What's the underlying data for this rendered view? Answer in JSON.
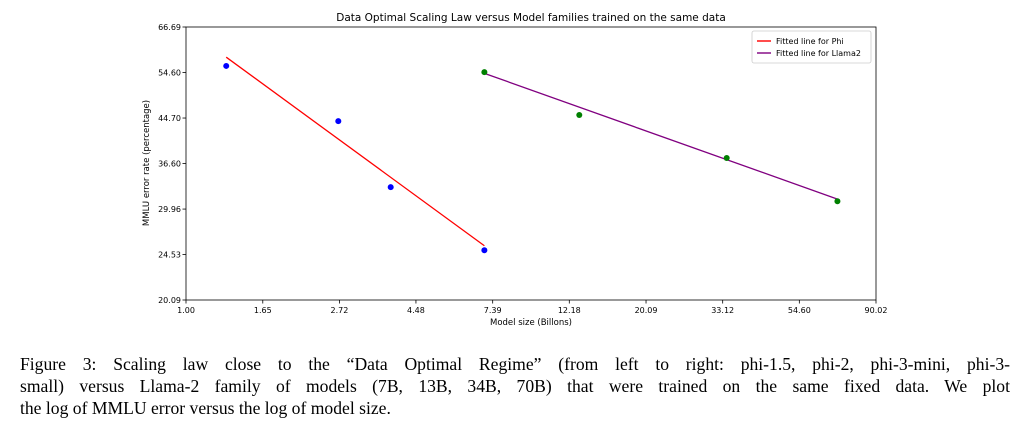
{
  "chart_data": {
    "type": "line+scatter",
    "title": "Data Optimal Scaling Law versus Model families trained on the same data",
    "xlabel": "Model size (Billons)",
    "ylabel": "MMLU error rate (percentage)",
    "xscale": "log",
    "yscale": "log",
    "xlim": [
      1.0,
      90.02
    ],
    "ylim": [
      20.09,
      66.69
    ],
    "xticks": [
      "1.00",
      "1.65",
      "2.72",
      "4.48",
      "7.39",
      "12.18",
      "20.09",
      "33.12",
      "54.60",
      "90.02"
    ],
    "yticks": [
      "20.09",
      "24.53",
      "29.96",
      "36.60",
      "44.70",
      "54.60",
      "66.69"
    ],
    "grid": false,
    "legend_placement": "top-right",
    "series": [
      {
        "name": "Fitted line for Phi",
        "kind": "line",
        "color": "#ff0000",
        "x": [
          1.3,
          7.0
        ],
        "y": [
          58.4,
          25.5
        ]
      },
      {
        "name": "Fitted line for Llama2",
        "kind": "line",
        "color": "#800080",
        "x": [
          7.0,
          70.0
        ],
        "y": [
          54.4,
          31.3
        ]
      },
      {
        "kind": "scatter",
        "color": "#0000ff",
        "x": [
          1.3,
          2.7,
          3.8,
          7.0
        ],
        "y": [
          56.2,
          44.1,
          33.0,
          25.0
        ]
      },
      {
        "kind": "scatter",
        "color": "#008000",
        "x": [
          7.0,
          13.0,
          34.0,
          70.0
        ],
        "y": [
          54.7,
          45.3,
          37.5,
          31.0
        ]
      }
    ]
  },
  "caption": {
    "line1": "Figure 3: Scaling law close to the “Data Optimal Regime” (from left to right: phi-1.5, phi-2, phi-3-mini, phi-3-",
    "line2": "small) versus Llama-2 family of models (7B, 13B, 34B, 70B) that were trained on the same fixed data. We plot",
    "line3": "the log of MMLU error versus the log of model size."
  }
}
